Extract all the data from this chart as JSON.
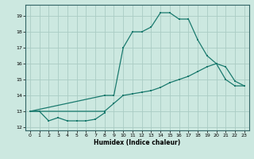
{
  "title": "",
  "xlabel": "Humidex (Indice chaleur)",
  "ylabel": "",
  "background_color": "#cce8e0",
  "grid_color": "#aaccC4",
  "line_color": "#1a7a6e",
  "xlim": [
    -0.5,
    23.5
  ],
  "ylim": [
    11.8,
    19.7
  ],
  "yticks": [
    12,
    13,
    14,
    15,
    16,
    17,
    18,
    19
  ],
  "xticks": [
    0,
    1,
    2,
    3,
    4,
    5,
    6,
    7,
    8,
    9,
    10,
    11,
    12,
    13,
    14,
    15,
    16,
    17,
    18,
    19,
    20,
    21,
    22,
    23
  ],
  "series": [
    {
      "x": [
        0,
        1,
        2,
        3,
        4,
        5,
        6,
        7,
        8
      ],
      "y": [
        13.0,
        13.0,
        12.4,
        12.6,
        12.4,
        12.4,
        12.4,
        12.5,
        12.9
      ]
    },
    {
      "x": [
        0,
        8,
        9,
        10,
        11,
        12,
        13,
        14,
        15,
        16,
        17,
        18,
        19,
        20,
        21,
        22,
        23
      ],
      "y": [
        13.0,
        14.0,
        14.0,
        17.0,
        18.0,
        18.0,
        18.3,
        19.2,
        19.2,
        18.8,
        18.8,
        17.5,
        16.5,
        16.0,
        15.8,
        14.9,
        14.6
      ]
    },
    {
      "x": [
        0,
        8,
        9,
        10,
        11,
        12,
        13,
        14,
        15,
        16,
        17,
        18,
        19,
        20,
        21,
        22,
        23
      ],
      "y": [
        13.0,
        13.0,
        13.5,
        14.0,
        14.1,
        14.2,
        14.3,
        14.5,
        14.8,
        15.0,
        15.2,
        15.5,
        15.8,
        16.0,
        15.0,
        14.6,
        14.6
      ]
    }
  ]
}
